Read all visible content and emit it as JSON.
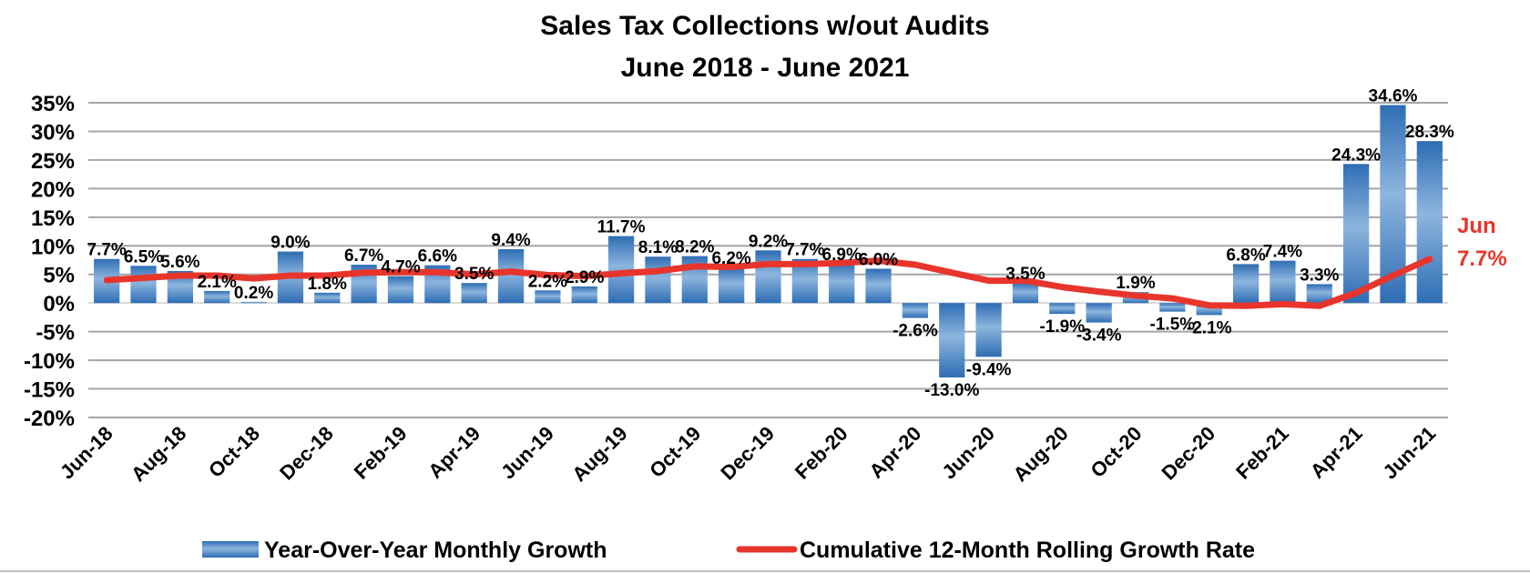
{
  "chart_data": {
    "type": "bar",
    "title": "Sales Tax Collections w/out Audits",
    "subtitle": "June 2018 - June 2021",
    "xlabel": "",
    "ylabel": "",
    "ylim": [
      -20,
      35
    ],
    "ytick_step": 5,
    "ytick_format": "percent",
    "grid": true,
    "legend_position": "bottom",
    "categories": [
      "Jun-18",
      "Jul-18",
      "Aug-18",
      "Sep-18",
      "Oct-18",
      "Nov-18",
      "Dec-18",
      "Jan-19",
      "Feb-19",
      "Mar-19",
      "Apr-19",
      "May-19",
      "Jun-19",
      "Jul-19",
      "Aug-19",
      "Sep-19",
      "Oct-19",
      "Nov-19",
      "Dec-19",
      "Jan-20",
      "Feb-20",
      "Mar-20",
      "Apr-20",
      "May-20",
      "Jun-20",
      "Jul-20",
      "Aug-20",
      "Sep-20",
      "Oct-20",
      "Nov-20",
      "Dec-20",
      "Jan-21",
      "Feb-21",
      "Mar-21",
      "Apr-21",
      "May-21",
      "Jun-21"
    ],
    "xtick_labels": [
      "Jun-18",
      "Aug-18",
      "Oct-18",
      "Dec-18",
      "Feb-19",
      "Apr-19",
      "Jun-19",
      "Aug-19",
      "Oct-19",
      "Dec-19",
      "Feb-20",
      "Apr-20",
      "Jun-20",
      "Aug-20",
      "Oct-20",
      "Dec-20",
      "Feb-21",
      "Apr-21",
      "Jun-21"
    ],
    "series": [
      {
        "name": "Year-Over-Year Monthly Growth",
        "type": "bar",
        "color": "#2E6DB4",
        "highlight_color": "#8DB5DE",
        "values": [
          7.7,
          6.5,
          5.6,
          2.1,
          0.2,
          9.0,
          1.8,
          6.7,
          4.7,
          6.6,
          3.5,
          9.4,
          2.2,
          2.9,
          11.7,
          8.1,
          8.2,
          6.2,
          9.2,
          7.7,
          6.9,
          6.0,
          -2.6,
          -13.0,
          -9.4,
          3.5,
          -1.9,
          -3.4,
          1.9,
          -1.5,
          -2.1,
          6.8,
          7.4,
          3.3,
          24.3,
          34.6,
          28.3
        ],
        "data_labels": [
          "7.7%",
          "6.5%",
          "5.6%",
          "2.1%",
          "0.2%",
          "9.0%",
          "1.8%",
          "6.7%",
          "4.7%",
          "6.6%",
          "3.5%",
          "9.4%",
          "2.2%",
          "2.9%",
          "11.7%",
          "8.1%",
          "8.2%",
          "6.2%",
          "9.2%",
          "7.7%",
          "6.9%",
          "6.0%",
          "-2.6%",
          "-13.0%",
          "-9.4%",
          "3.5%",
          "-1.9%",
          "-3.4%",
          "1.9%",
          "-1.5%",
          "-2.1%",
          "6.8%",
          "7.4%",
          "3.3%",
          "24.3%",
          "34.6%",
          "28.3%"
        ]
      },
      {
        "name": "Cumulative 12-Month Rolling Growth Rate",
        "type": "line",
        "color": "#E8352B",
        "values": [
          4.0,
          4.4,
          4.8,
          4.8,
          4.3,
          4.8,
          4.8,
          5.3,
          5.4,
          5.4,
          5.0,
          5.5,
          4.9,
          4.7,
          5.2,
          5.6,
          6.4,
          6.3,
          6.8,
          6.8,
          7.0,
          7.4,
          6.7,
          5.3,
          3.9,
          3.9,
          2.8,
          2.0,
          1.3,
          0.8,
          -0.4,
          -0.5,
          -0.2,
          -0.5,
          1.8,
          4.8,
          7.7
        ]
      }
    ],
    "annotation": {
      "line1": "Jun",
      "line2": "7.7%",
      "color": "#E8352B"
    }
  }
}
